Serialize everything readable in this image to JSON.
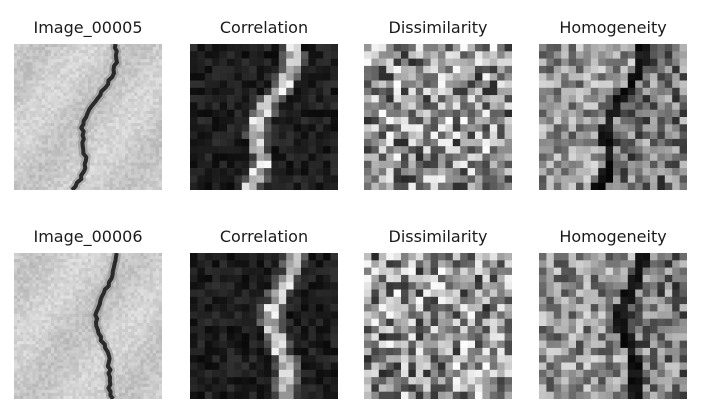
{
  "figure": {
    "rows": [
      {
        "panels": [
          {
            "title": "Image_00005",
            "kind": "photo",
            "seed": 5
          },
          {
            "title": "Correlation",
            "kind": "correlation",
            "seed": 15
          },
          {
            "title": "Dissimilarity",
            "kind": "dissimilarity",
            "seed": 25
          },
          {
            "title": "Homogeneity",
            "kind": "homogeneity",
            "seed": 35
          }
        ]
      },
      {
        "panels": [
          {
            "title": "Image_00006",
            "kind": "photo",
            "seed": 6
          },
          {
            "title": "Correlation",
            "kind": "correlation",
            "seed": 16
          },
          {
            "title": "Dissimilarity",
            "kind": "dissimilarity",
            "seed": 26
          },
          {
            "title": "Homogeneity",
            "kind": "homogeneity",
            "seed": 36
          }
        ]
      }
    ]
  }
}
